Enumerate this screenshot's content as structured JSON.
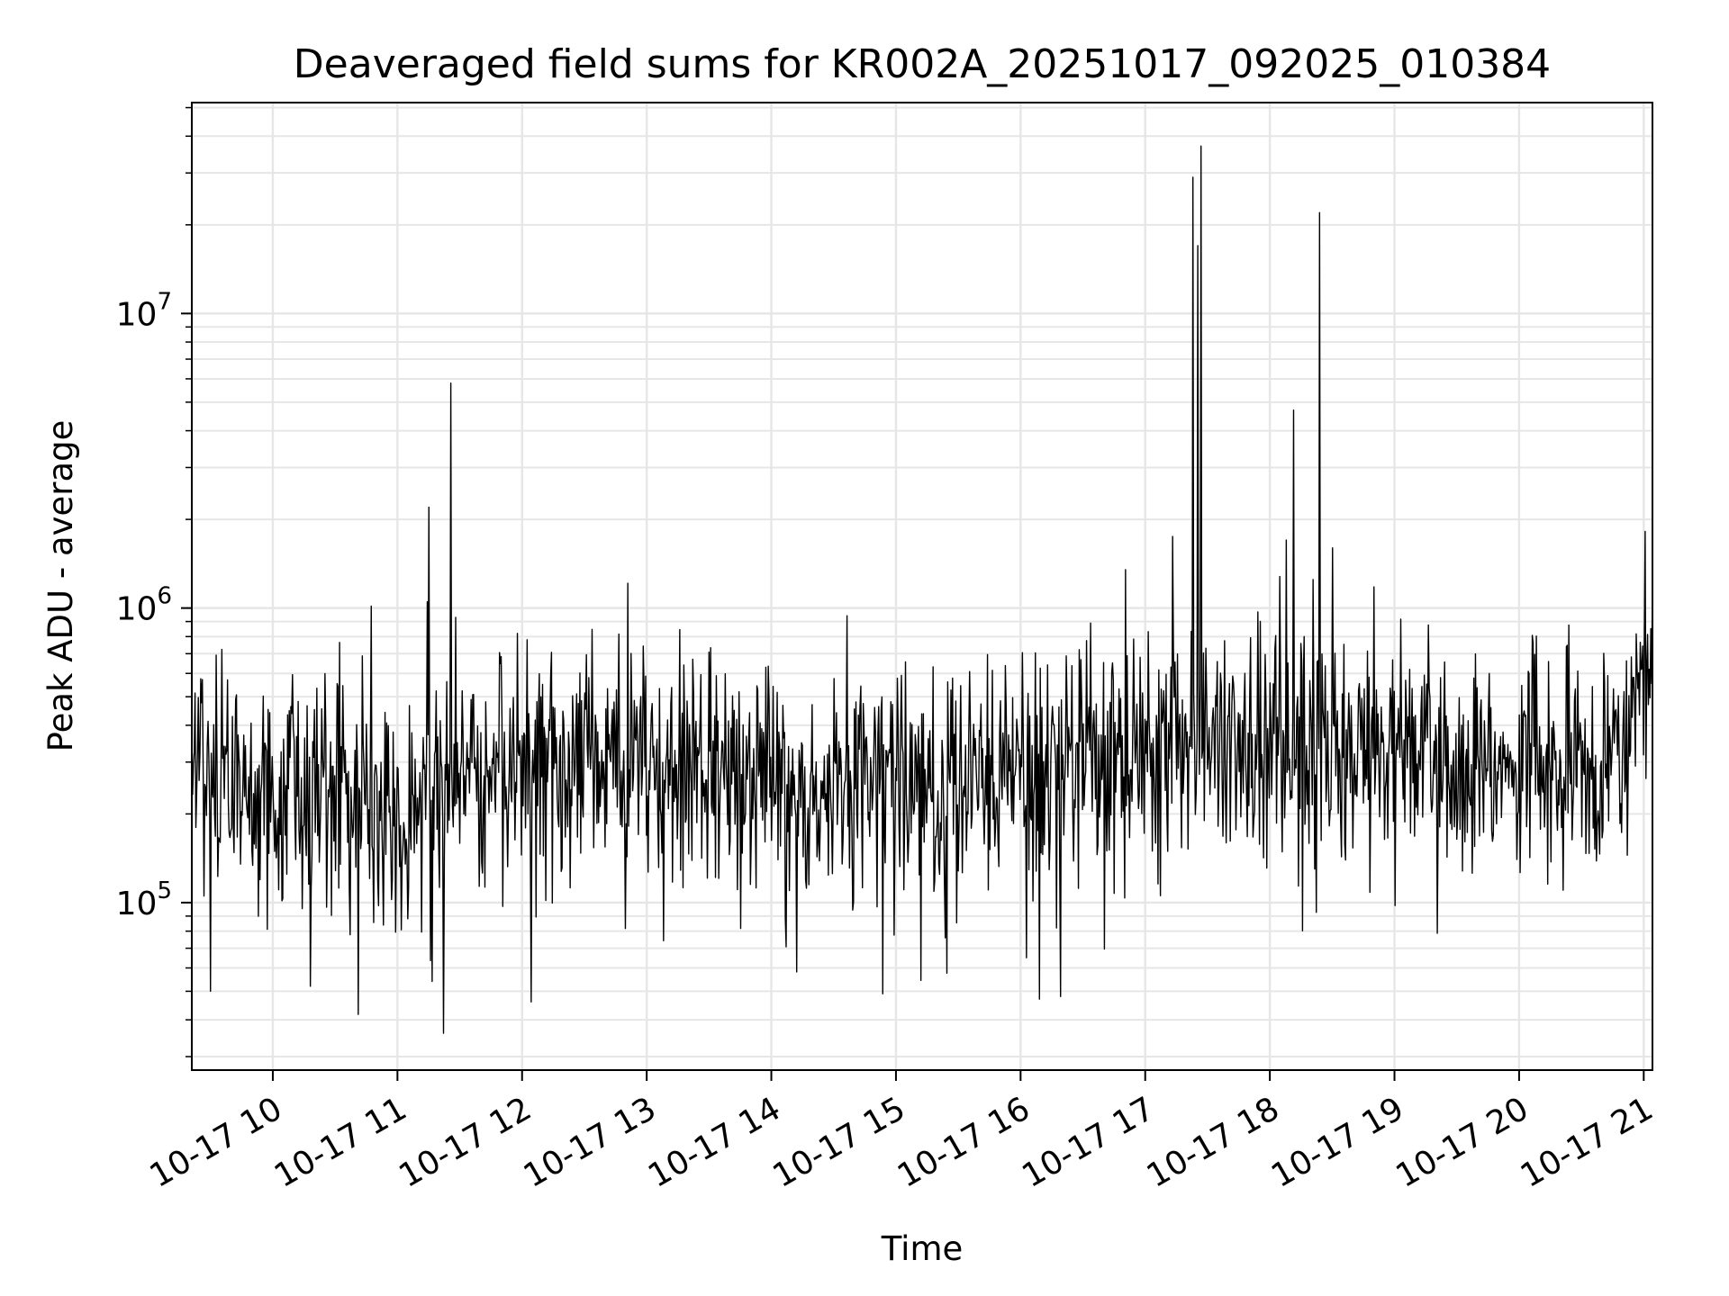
{
  "chart_data": {
    "type": "line",
    "title": "Deaveraged field sums for KR002A_20251017_092025_010384",
    "xlabel": "Time",
    "ylabel": "Peak ADU - average",
    "yscale": "log",
    "ylim": [
      27000,
      52000000
    ],
    "xlim_hours": [
      9.35,
      21.07
    ],
    "grid": true,
    "line_color": "#000000",
    "x_ticks": [
      {
        "hour": 10,
        "label": "10-17 10"
      },
      {
        "hour": 11,
        "label": "10-17 11"
      },
      {
        "hour": 12,
        "label": "10-17 12"
      },
      {
        "hour": 13,
        "label": "10-17 13"
      },
      {
        "hour": 14,
        "label": "10-17 14"
      },
      {
        "hour": 15,
        "label": "10-17 15"
      },
      {
        "hour": 16,
        "label": "10-17 16"
      },
      {
        "hour": 17,
        "label": "10-17 17"
      },
      {
        "hour": 18,
        "label": "10-17 18"
      },
      {
        "hour": 19,
        "label": "10-17 19"
      },
      {
        "hour": 20,
        "label": "10-17 20"
      },
      {
        "hour": 21,
        "label": "10-17 21"
      }
    ],
    "y_ticks": [
      {
        "value": 100000,
        "base": "10",
        "exp": "5"
      },
      {
        "value": 1000000,
        "base": "10",
        "exp": "6"
      },
      {
        "value": 10000000,
        "base": "10",
        "exp": "7"
      }
    ],
    "baseline": [
      {
        "hour": 9.35,
        "median": 250000,
        "spread": 0.55
      },
      {
        "hour": 10.0,
        "median": 240000,
        "spread": 0.55
      },
      {
        "hour": 11.0,
        "median": 210000,
        "spread": 0.55
      },
      {
        "hour": 11.6,
        "median": 300000,
        "spread": 0.45
      },
      {
        "hour": 12.0,
        "median": 280000,
        "spread": 0.5
      },
      {
        "hour": 12.5,
        "median": 320000,
        "spread": 0.5
      },
      {
        "hour": 13.5,
        "median": 260000,
        "spread": 0.55
      },
      {
        "hour": 15.0,
        "median": 240000,
        "spread": 0.55
      },
      {
        "hour": 16.0,
        "median": 260000,
        "spread": 0.55
      },
      {
        "hour": 17.0,
        "median": 330000,
        "spread": 0.55
      },
      {
        "hour": 18.0,
        "median": 340000,
        "spread": 0.55
      },
      {
        "hour": 19.5,
        "median": 300000,
        "spread": 0.5
      },
      {
        "hour": 20.85,
        "median": 290000,
        "spread": 0.5
      },
      {
        "hour": 20.95,
        "median": 520000,
        "spread": 0.45
      },
      {
        "hour": 21.07,
        "median": 500000,
        "spread": 0.45
      }
    ],
    "n_points": 1800,
    "spikes": [
      {
        "hour": 11.25,
        "value": 2200000
      },
      {
        "hour": 11.24,
        "value": 1050000
      },
      {
        "hour": 11.43,
        "value": 5800000
      },
      {
        "hour": 11.47,
        "value": 930000
      },
      {
        "hour": 11.37,
        "value": 36000
      },
      {
        "hour": 11.28,
        "value": 54000
      },
      {
        "hour": 16.84,
        "value": 1350000
      },
      {
        "hour": 17.22,
        "value": 1750000
      },
      {
        "hour": 17.38,
        "value": 29000000
      },
      {
        "hour": 17.42,
        "value": 17000000
      },
      {
        "hour": 17.45,
        "value": 37000000
      },
      {
        "hour": 18.19,
        "value": 4700000
      },
      {
        "hour": 18.4,
        "value": 22000000
      },
      {
        "hour": 18.5,
        "value": 1600000
      },
      {
        "hour": 18.08,
        "value": 1280000
      },
      {
        "hour": 18.35,
        "value": 1250000
      },
      {
        "hour": 21.01,
        "value": 1820000
      },
      {
        "hour": 21.07,
        "value": 1250000
      },
      {
        "hour": 16.15,
        "value": 47000
      },
      {
        "hour": 16.32,
        "value": 48000
      },
      {
        "hour": 9.5,
        "value": 50000
      },
      {
        "hour": 10.3,
        "value": 52000
      },
      {
        "hour": 12.07,
        "value": 46000
      }
    ]
  }
}
